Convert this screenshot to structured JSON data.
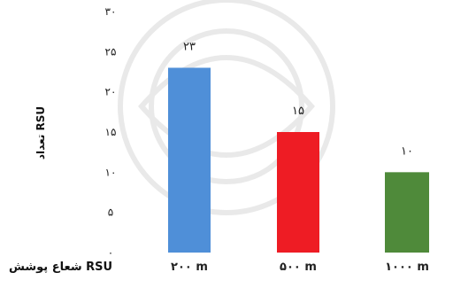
{
  "chart_data": {
    "type": "bar",
    "title": "",
    "ylabel": "تعداد RSU",
    "xlabel": "شعاع پوشش RSU",
    "ylim": [
      0,
      30
    ],
    "yticks": [
      0,
      5,
      10,
      15,
      20,
      25,
      30
    ],
    "ytick_labels": [
      "۰",
      "۵",
      "۱۰",
      "۱۵",
      "۲۰",
      "۲۵",
      "۳۰"
    ],
    "categories": [
      "۲۰۰ m",
      "۵۰۰ m",
      "۱۰۰۰ m"
    ],
    "values": [
      23,
      15,
      10
    ],
    "value_labels": [
      "۲۳",
      "۱۵",
      "۱۰"
    ],
    "colors": [
      "#4f8fd8",
      "#ee1c24",
      "#4f8a3a"
    ],
    "grid": false,
    "legend": "none"
  }
}
